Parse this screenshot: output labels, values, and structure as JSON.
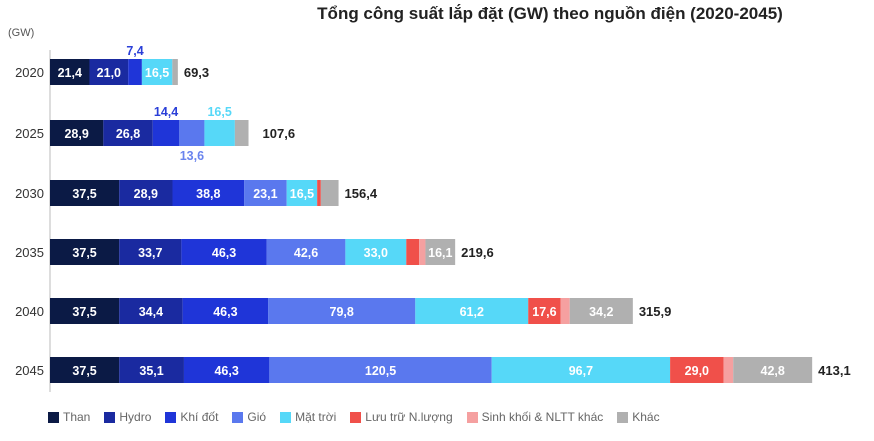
{
  "chart_data": {
    "type": "bar",
    "orientation": "horizontal",
    "stacked": true,
    "title": "Tổng công suất lắp đặt (GW) theo nguồn điện (2020-2045)",
    "unit_label": "(GW)",
    "categories": [
      "2020",
      "2025",
      "2030",
      "2035",
      "2040",
      "2045"
    ],
    "totals": [
      "69,3",
      "107,6",
      "156,4",
      "219,6",
      "315,9",
      "413,1"
    ],
    "total_values": [
      69.3,
      107.6,
      156.4,
      219.6,
      315.9,
      413.1
    ],
    "series": [
      {
        "name": "Than",
        "color": "#0b1a45",
        "values": [
          21.4,
          28.9,
          37.5,
          37.5,
          37.5,
          37.5
        ],
        "labels": [
          "21,4",
          "28,9",
          "37,5",
          "37,5",
          "37,5",
          "37,5"
        ]
      },
      {
        "name": "Hydro",
        "color": "#1a2aa0",
        "values": [
          21.0,
          26.8,
          28.9,
          33.7,
          34.4,
          35.1
        ],
        "labels": [
          "21,0",
          "26,8",
          "28,9",
          "33,7",
          "34,4",
          "35,1"
        ]
      },
      {
        "name": "Khí đốt",
        "color": "#1f35d8",
        "values": [
          7.4,
          14.4,
          38.8,
          46.3,
          46.3,
          46.3
        ],
        "labels": [
          "7,4",
          "14,4",
          "38,8",
          "46,3",
          "46,3",
          "46,3"
        ]
      },
      {
        "name": "Gió",
        "color": "#5a78ee",
        "values": [
          0,
          13.6,
          23.1,
          42.6,
          79.8,
          120.5
        ],
        "labels": [
          "",
          "13,6",
          "23,1",
          "42,6",
          "79,8",
          "120,5"
        ]
      },
      {
        "name": "Mặt trời",
        "color": "#56d8f8",
        "values": [
          16.5,
          16.5,
          16.5,
          33.0,
          61.2,
          96.7
        ],
        "labels": [
          "16,5",
          "16,5",
          "16,5",
          "33,0",
          "61,2",
          "96,7"
        ]
      },
      {
        "name": "Lưu trữ N.lượng",
        "color": "#f0504a",
        "values": [
          0,
          0,
          2.0,
          7.0,
          17.6,
          29.0
        ],
        "labels": [
          "",
          "",
          "",
          "",
          "17,6",
          "29,0"
        ]
      },
      {
        "name": "Sinh khối & NLTT khác",
        "color": "#f5a0a0",
        "values": [
          0,
          0,
          0,
          3.4,
          4.9,
          5.2
        ],
        "labels": [
          "",
          "",
          "",
          "",
          "",
          ""
        ]
      },
      {
        "name": "Khác",
        "color": "#b0b0b0",
        "values": [
          3.0,
          7.4,
          9.6,
          16.1,
          34.2,
          42.8
        ],
        "labels": [
          "",
          "",
          "",
          "16,1",
          "34,2",
          "42,8"
        ]
      }
    ],
    "xlim": [
      0,
      420
    ],
    "grid": false,
    "legend_position": "bottom"
  }
}
